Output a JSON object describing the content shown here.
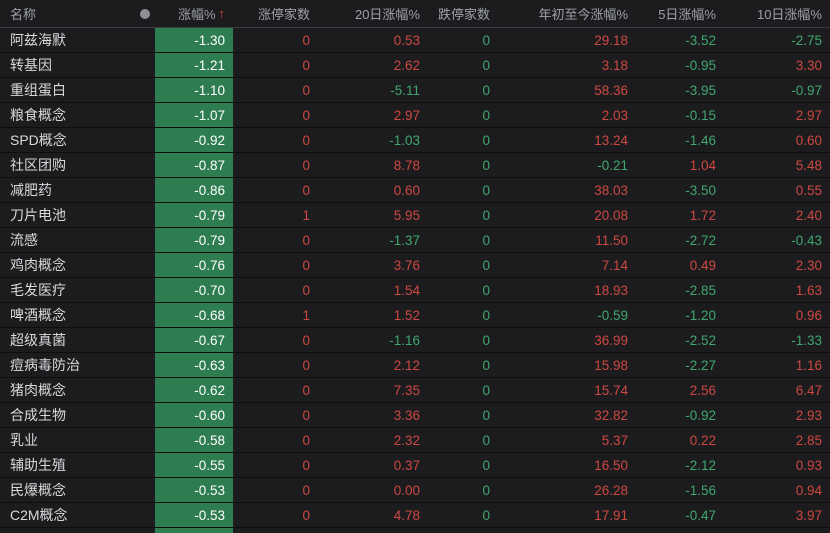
{
  "table": {
    "columns": [
      {
        "label": "名称"
      },
      {
        "label": "涨幅%",
        "sorted": "ascending"
      },
      {
        "label": "涨停家数"
      },
      {
        "label": "20日涨幅%"
      },
      {
        "label": "跌停家数"
      },
      {
        "label": "年初至今涨幅%"
      },
      {
        "label": "5日涨幅%"
      },
      {
        "label": "10日涨幅%"
      }
    ],
    "sort_indicator": "↑",
    "rows": [
      {
        "name": "阿兹海默",
        "change": "-1.30",
        "limit_up": "0",
        "chg20": "0.53",
        "limit_down": "0",
        "ytd": "29.18",
        "chg5": "-3.52",
        "chg10": "-2.75"
      },
      {
        "name": "转基因",
        "change": "-1.21",
        "limit_up": "0",
        "chg20": "2.62",
        "limit_down": "0",
        "ytd": "3.18",
        "chg5": "-0.95",
        "chg10": "3.30"
      },
      {
        "name": "重组蛋白",
        "change": "-1.10",
        "limit_up": "0",
        "chg20": "-5.11",
        "limit_down": "0",
        "ytd": "58.36",
        "chg5": "-3.95",
        "chg10": "-0.97"
      },
      {
        "name": "粮食概念",
        "change": "-1.07",
        "limit_up": "0",
        "chg20": "2.97",
        "limit_down": "0",
        "ytd": "2.03",
        "chg5": "-0.15",
        "chg10": "2.97"
      },
      {
        "name": "SPD概念",
        "change": "-0.92",
        "limit_up": "0",
        "chg20": "-1.03",
        "limit_down": "0",
        "ytd": "13.24",
        "chg5": "-1.46",
        "chg10": "0.60"
      },
      {
        "name": "社区团购",
        "change": "-0.87",
        "limit_up": "0",
        "chg20": "8.78",
        "limit_down": "0",
        "ytd": "-0.21",
        "chg5": "1.04",
        "chg10": "5.48"
      },
      {
        "name": "减肥药",
        "change": "-0.86",
        "limit_up": "0",
        "chg20": "0.60",
        "limit_down": "0",
        "ytd": "38.03",
        "chg5": "-3.50",
        "chg10": "0.55"
      },
      {
        "name": "刀片电池",
        "change": "-0.79",
        "limit_up": "1",
        "chg20": "5.95",
        "limit_down": "0",
        "ytd": "20.08",
        "chg5": "1.72",
        "chg10": "2.40"
      },
      {
        "name": "流感",
        "change": "-0.79",
        "limit_up": "0",
        "chg20": "-1.37",
        "limit_down": "0",
        "ytd": "11.50",
        "chg5": "-2.72",
        "chg10": "-0.43"
      },
      {
        "name": "鸡肉概念",
        "change": "-0.76",
        "limit_up": "0",
        "chg20": "3.76",
        "limit_down": "0",
        "ytd": "7.14",
        "chg5": "0.49",
        "chg10": "2.30"
      },
      {
        "name": "毛发医疗",
        "change": "-0.70",
        "limit_up": "0",
        "chg20": "1.54",
        "limit_down": "0",
        "ytd": "18.93",
        "chg5": "-2.85",
        "chg10": "1.63"
      },
      {
        "name": "啤酒概念",
        "change": "-0.68",
        "limit_up": "1",
        "chg20": "1.52",
        "limit_down": "0",
        "ytd": "-0.59",
        "chg5": "-1.20",
        "chg10": "0.96"
      },
      {
        "name": "超级真菌",
        "change": "-0.67",
        "limit_up": "0",
        "chg20": "-1.16",
        "limit_down": "0",
        "ytd": "36.99",
        "chg5": "-2.52",
        "chg10": "-1.33"
      },
      {
        "name": "痘病毒防治",
        "change": "-0.63",
        "limit_up": "0",
        "chg20": "2.12",
        "limit_down": "0",
        "ytd": "15.98",
        "chg5": "-2.27",
        "chg10": "1.16"
      },
      {
        "name": "猪肉概念",
        "change": "-0.62",
        "limit_up": "0",
        "chg20": "7.35",
        "limit_down": "0",
        "ytd": "15.74",
        "chg5": "2.56",
        "chg10": "6.47"
      },
      {
        "name": "合成生物",
        "change": "-0.60",
        "limit_up": "0",
        "chg20": "3.36",
        "limit_down": "0",
        "ytd": "32.82",
        "chg5": "-0.92",
        "chg10": "2.93"
      },
      {
        "name": "乳业",
        "change": "-0.58",
        "limit_up": "0",
        "chg20": "2.32",
        "limit_down": "0",
        "ytd": "5.37",
        "chg5": "0.22",
        "chg10": "2.85"
      },
      {
        "name": "辅助生殖",
        "change": "-0.55",
        "limit_up": "0",
        "chg20": "0.37",
        "limit_down": "0",
        "ytd": "16.50",
        "chg5": "-2.12",
        "chg10": "0.93"
      },
      {
        "name": "民爆概念",
        "change": "-0.53",
        "limit_up": "0",
        "chg20": "0.00",
        "limit_down": "0",
        "ytd": "26.28",
        "chg5": "-1.56",
        "chg10": "0.94"
      },
      {
        "name": "C2M概念",
        "change": "-0.53",
        "limit_up": "0",
        "chg20": "4.78",
        "limit_down": "0",
        "ytd": "17.91",
        "chg5": "-0.47",
        "chg10": "3.97"
      }
    ]
  },
  "colors": {
    "up_red": "#cd4841",
    "down_green": "#3fa76d",
    "sorted_cell_bg": "#2e7d51",
    "background": "#1c1c1f",
    "header_text": "#9da1a6"
  },
  "icons": {
    "sort_ascending": "↑",
    "header_dot": "circle-indicator"
  }
}
